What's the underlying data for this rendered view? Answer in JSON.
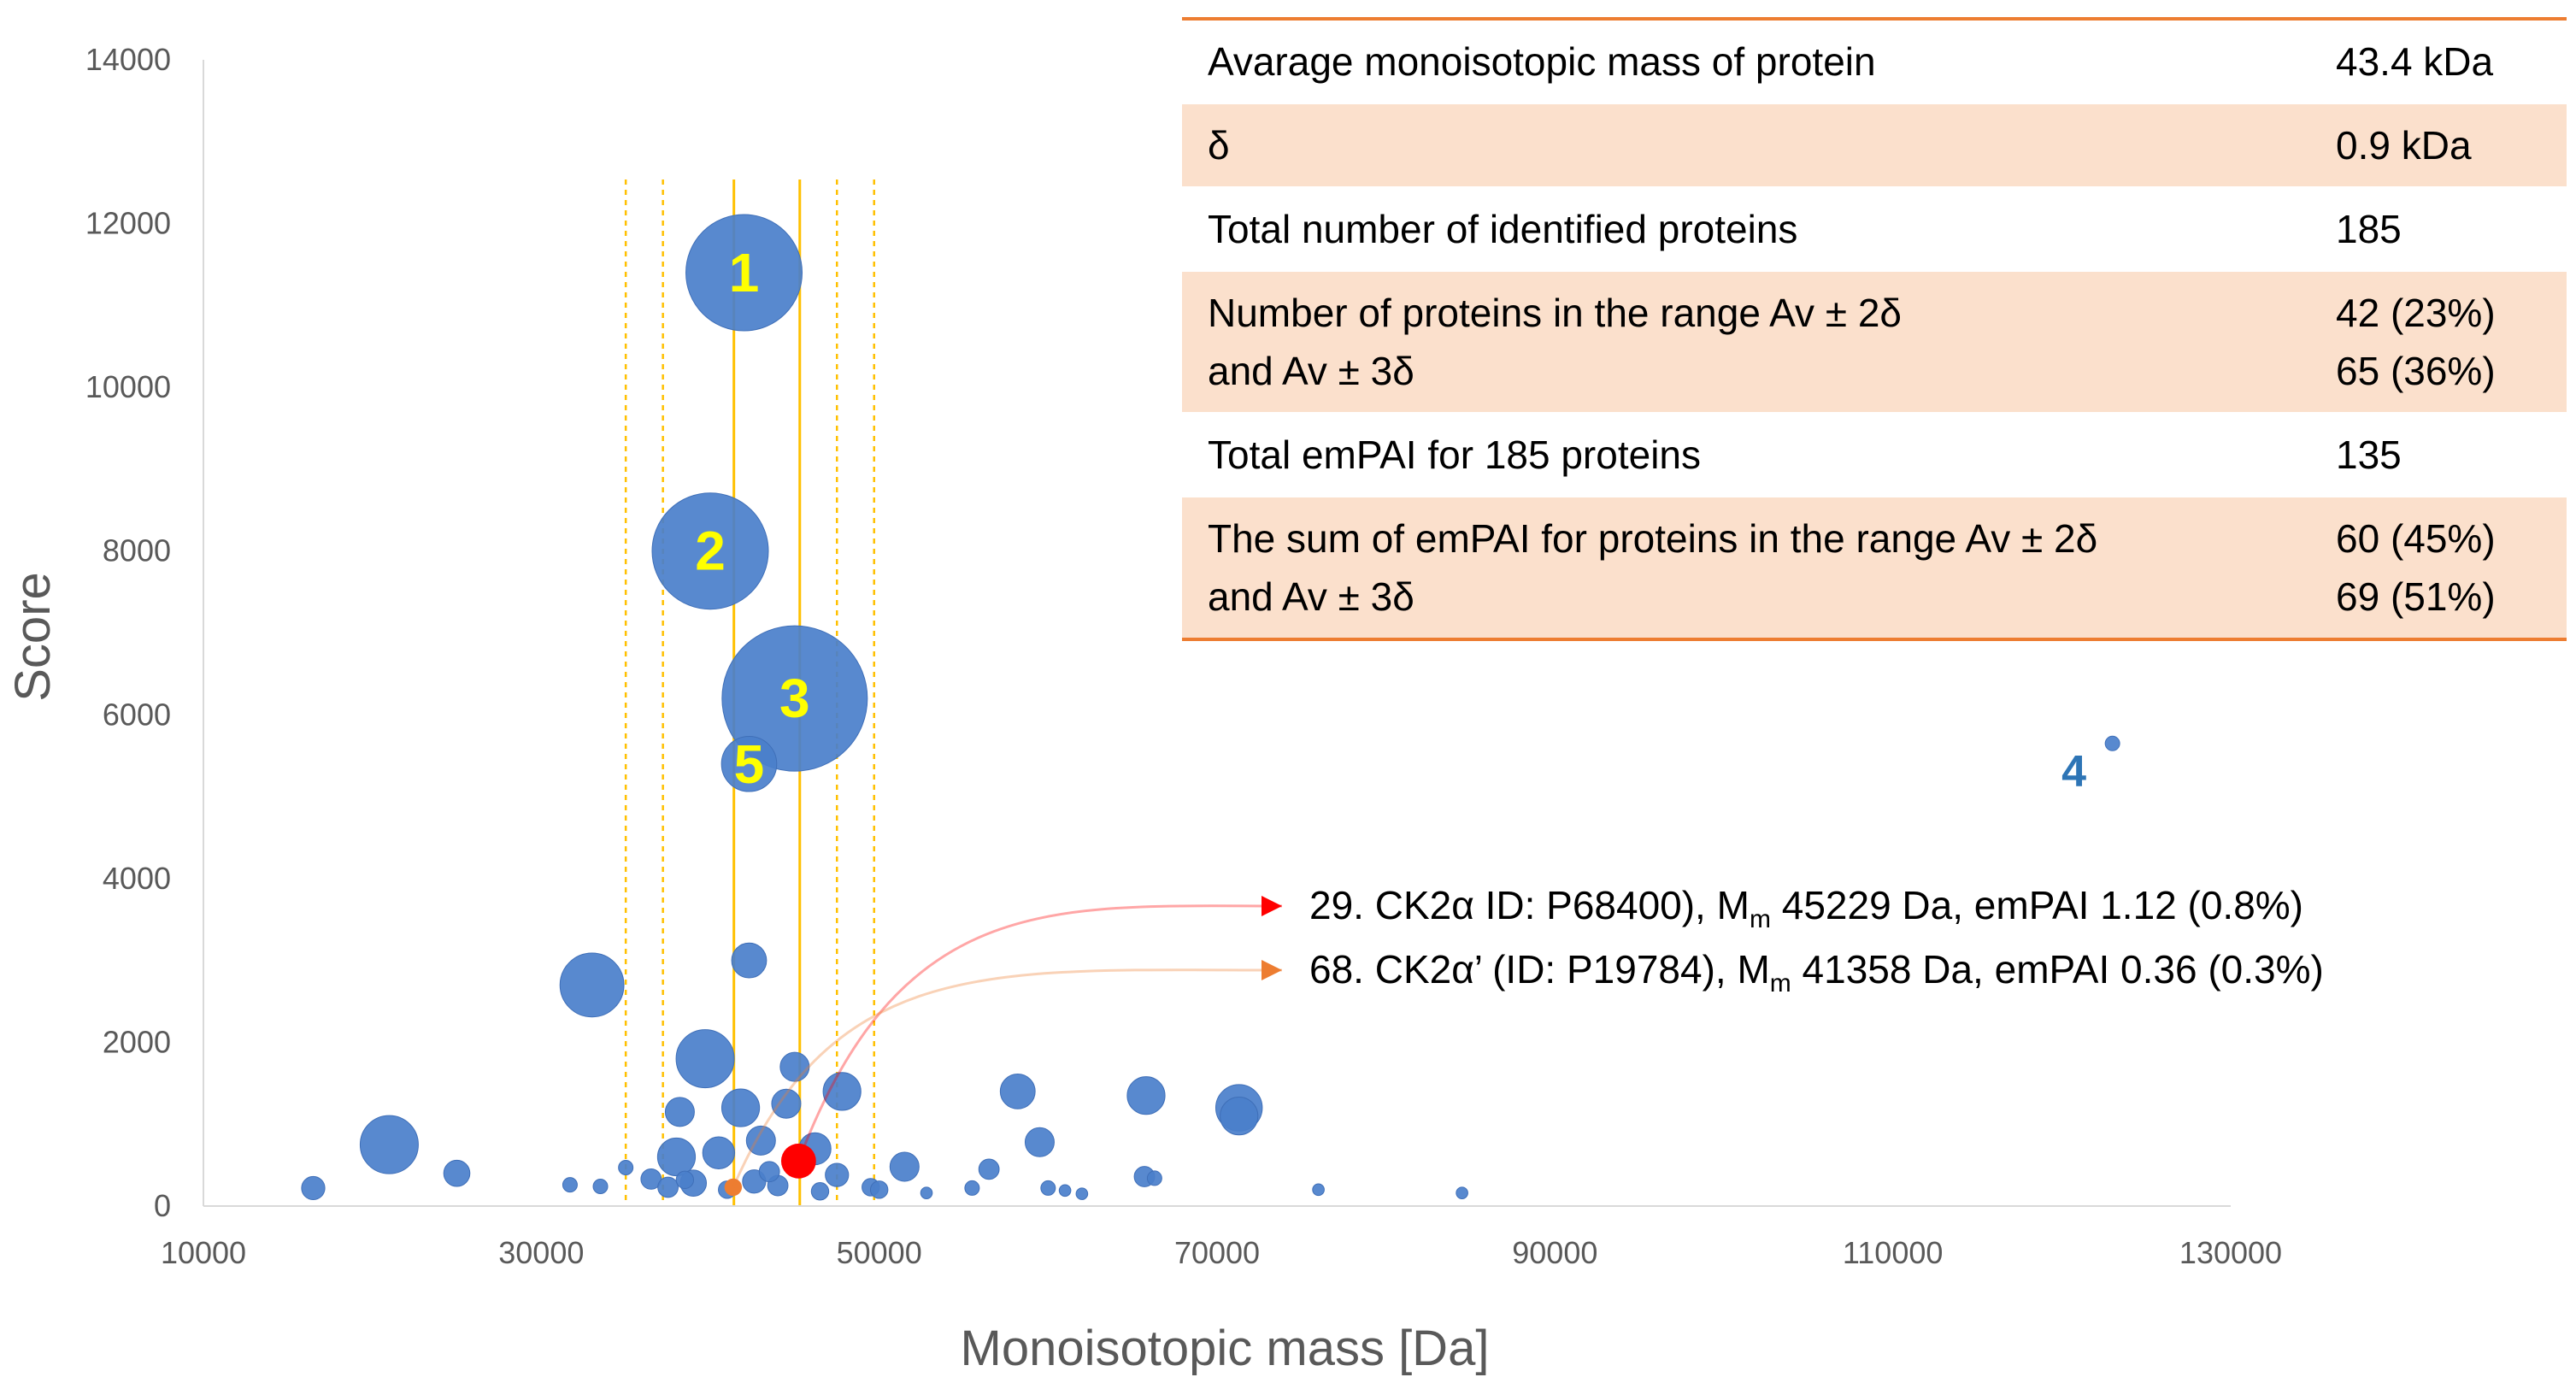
{
  "chart_data": {
    "type": "scatter",
    "subtype": "bubble",
    "title": "",
    "xlabel": "Monoisotopic mass [Da]",
    "ylabel": "Score",
    "xlim": [
      10000,
      130000
    ],
    "ylim": [
      0,
      14000
    ],
    "x_ticks": [
      "10000",
      "30000",
      "50000",
      "70000",
      "90000",
      "110000",
      "130000"
    ],
    "y_ticks": [
      "0",
      "2000",
      "4000",
      "6000",
      "8000",
      "10000",
      "12000",
      "14000"
    ],
    "grid": false,
    "legend": "none",
    "colors": {
      "bubble": "#4a7fcb",
      "ck2a_marker": "#ff0000",
      "ck2a_prime_marker": "#ed7d31",
      "guide_lines": "#ffc000",
      "bubble_label": "#ffff00",
      "outlier_label": "#2e75b6"
    },
    "vertical_guides": [
      {
        "x": 41400,
        "style": "solid"
      },
      {
        "x": 45300,
        "style": "solid"
      },
      {
        "x": 35000,
        "style": "dashed"
      },
      {
        "x": 37200,
        "style": "dashed"
      },
      {
        "x": 47500,
        "style": "dashed"
      },
      {
        "x": 49700,
        "style": "dashed"
      }
    ],
    "points": [
      {
        "x": 42000,
        "y": 11400,
        "size": 4.0,
        "label": "1"
      },
      {
        "x": 40000,
        "y": 8000,
        "size": 4.0,
        "label": "2"
      },
      {
        "x": 45000,
        "y": 6200,
        "size": 5.0,
        "label": "3"
      },
      {
        "x": 42300,
        "y": 5400,
        "size": 1.9,
        "label": "5"
      },
      {
        "x": 123000,
        "y": 5650,
        "size": 0.5,
        "label": "4"
      },
      {
        "x": 33000,
        "y": 2700,
        "size": 2.2
      },
      {
        "x": 42300,
        "y": 3000,
        "size": 1.2
      },
      {
        "x": 39700,
        "y": 1800,
        "size": 2.0
      },
      {
        "x": 45000,
        "y": 1700,
        "size": 1.0
      },
      {
        "x": 47800,
        "y": 1400,
        "size": 1.3
      },
      {
        "x": 44500,
        "y": 1250,
        "size": 1.0
      },
      {
        "x": 41800,
        "y": 1200,
        "size": 1.3
      },
      {
        "x": 38200,
        "y": 1150,
        "size": 1.0
      },
      {
        "x": 58200,
        "y": 1400,
        "size": 1.2
      },
      {
        "x": 65800,
        "y": 1350,
        "size": 1.3
      },
      {
        "x": 71300,
        "y": 1200,
        "size": 1.6
      },
      {
        "x": 71300,
        "y": 1100,
        "size": 1.3
      },
      {
        "x": 21000,
        "y": 750,
        "size": 2.0
      },
      {
        "x": 59500,
        "y": 780,
        "size": 1.0
      },
      {
        "x": 43000,
        "y": 800,
        "size": 1.0
      },
      {
        "x": 46200,
        "y": 700,
        "size": 1.1
      },
      {
        "x": 38000,
        "y": 600,
        "size": 1.3
      },
      {
        "x": 40500,
        "y": 650,
        "size": 1.1
      },
      {
        "x": 51500,
        "y": 480,
        "size": 1.0
      },
      {
        "x": 25000,
        "y": 400,
        "size": 0.9
      },
      {
        "x": 56500,
        "y": 450,
        "size": 0.7
      },
      {
        "x": 65700,
        "y": 360,
        "size": 0.7
      },
      {
        "x": 66300,
        "y": 340,
        "size": 0.5
      },
      {
        "x": 47500,
        "y": 380,
        "size": 0.8
      },
      {
        "x": 36500,
        "y": 330,
        "size": 0.7
      },
      {
        "x": 42600,
        "y": 300,
        "size": 0.8
      },
      {
        "x": 39000,
        "y": 280,
        "size": 0.9
      },
      {
        "x": 16500,
        "y": 220,
        "size": 0.8
      },
      {
        "x": 31700,
        "y": 260,
        "size": 0.5
      },
      {
        "x": 35000,
        "y": 470,
        "size": 0.5
      },
      {
        "x": 33500,
        "y": 240,
        "size": 0.5
      },
      {
        "x": 37500,
        "y": 230,
        "size": 0.7
      },
      {
        "x": 44000,
        "y": 250,
        "size": 0.7
      },
      {
        "x": 49500,
        "y": 230,
        "size": 0.6
      },
      {
        "x": 50000,
        "y": 200,
        "size": 0.6
      },
      {
        "x": 52800,
        "y": 160,
        "size": 0.4
      },
      {
        "x": 55500,
        "y": 220,
        "size": 0.5
      },
      {
        "x": 60000,
        "y": 220,
        "size": 0.5
      },
      {
        "x": 61000,
        "y": 190,
        "size": 0.4
      },
      {
        "x": 62000,
        "y": 150,
        "size": 0.4
      },
      {
        "x": 76000,
        "y": 200,
        "size": 0.4
      },
      {
        "x": 84500,
        "y": 160,
        "size": 0.4
      },
      {
        "x": 46500,
        "y": 180,
        "size": 0.6
      },
      {
        "x": 41000,
        "y": 200,
        "size": 0.6
      },
      {
        "x": 38500,
        "y": 320,
        "size": 0.6
      },
      {
        "x": 43500,
        "y": 420,
        "size": 0.7
      }
    ],
    "highlighted": [
      {
        "x": 45229,
        "y": 550,
        "size": 1.0,
        "color": "#ff0000"
      },
      {
        "x": 41358,
        "y": 230,
        "size": 0.5,
        "color": "#ed7d31"
      }
    ],
    "annotations": [
      {
        "text_main": "29. CK2α   ID: P68400), M",
        "subscript": "m",
        "text_rest": " 45229 Da, emPAI 1.12 (0.8%)",
        "color": "#ff0000"
      },
      {
        "text_main": "68. CK2α’ (ID: P19784), M",
        "subscript": "m",
        "text_rest": " 41358 Da, emPAI 0.36 (0.3%)",
        "color": "#ed7d31"
      }
    ]
  },
  "table": {
    "rows": [
      {
        "label": [
          "Avarage monoisotopic mass of protein"
        ],
        "value": [
          "43.4 kDa"
        ],
        "shaded": false
      },
      {
        "label": [
          "δ"
        ],
        "value": [
          "0.9 kDa"
        ],
        "shaded": true
      },
      {
        "label": [
          "Total number of identified proteins"
        ],
        "value": [
          "185"
        ],
        "shaded": false
      },
      {
        "label": [
          "Number of proteins in the range Av ± 2δ",
          "and Av ± 3δ"
        ],
        "value": [
          "42 (23%)",
          "65 (36%)"
        ],
        "shaded": true
      },
      {
        "label": [
          "Total emPAI for 185 proteins"
        ],
        "value": [
          "135"
        ],
        "shaded": false
      },
      {
        "label": [
          "The sum of emPAI for proteins in the range Av ± 2δ",
          "and Av ± 3δ"
        ],
        "value": [
          "60 (45%)",
          "69 (51%)"
        ],
        "shaded": true
      }
    ]
  }
}
